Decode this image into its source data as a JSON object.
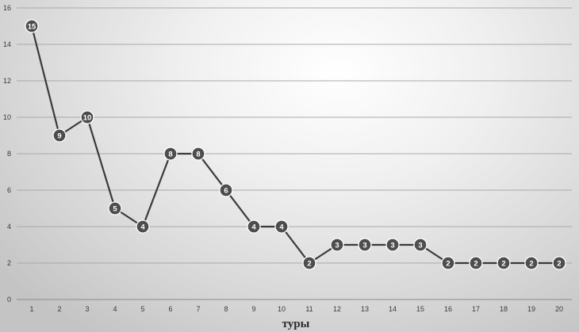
{
  "chart_data": {
    "type": "line",
    "title": "",
    "xlabel": "туры",
    "ylabel": "",
    "ylim": [
      0,
      16
    ],
    "yticks": [
      0,
      2,
      4,
      6,
      8,
      10,
      12,
      14,
      16
    ],
    "categories": [
      "1",
      "2",
      "3",
      "4",
      "5",
      "6",
      "7",
      "8",
      "9",
      "10",
      "11",
      "12",
      "13",
      "14",
      "15",
      "16",
      "17",
      "18",
      "19",
      "20"
    ],
    "series": [
      {
        "values": [
          15,
          9,
          10,
          5,
          4,
          8,
          8,
          6,
          4,
          4,
          2,
          3,
          3,
          3,
          3,
          2,
          2,
          2,
          2,
          2
        ]
      }
    ],
    "grid": true,
    "data_labels": true,
    "colors": {
      "line": "#3a3a3a",
      "marker": "#4d4d4d",
      "marker_label": "#ffffff"
    }
  }
}
